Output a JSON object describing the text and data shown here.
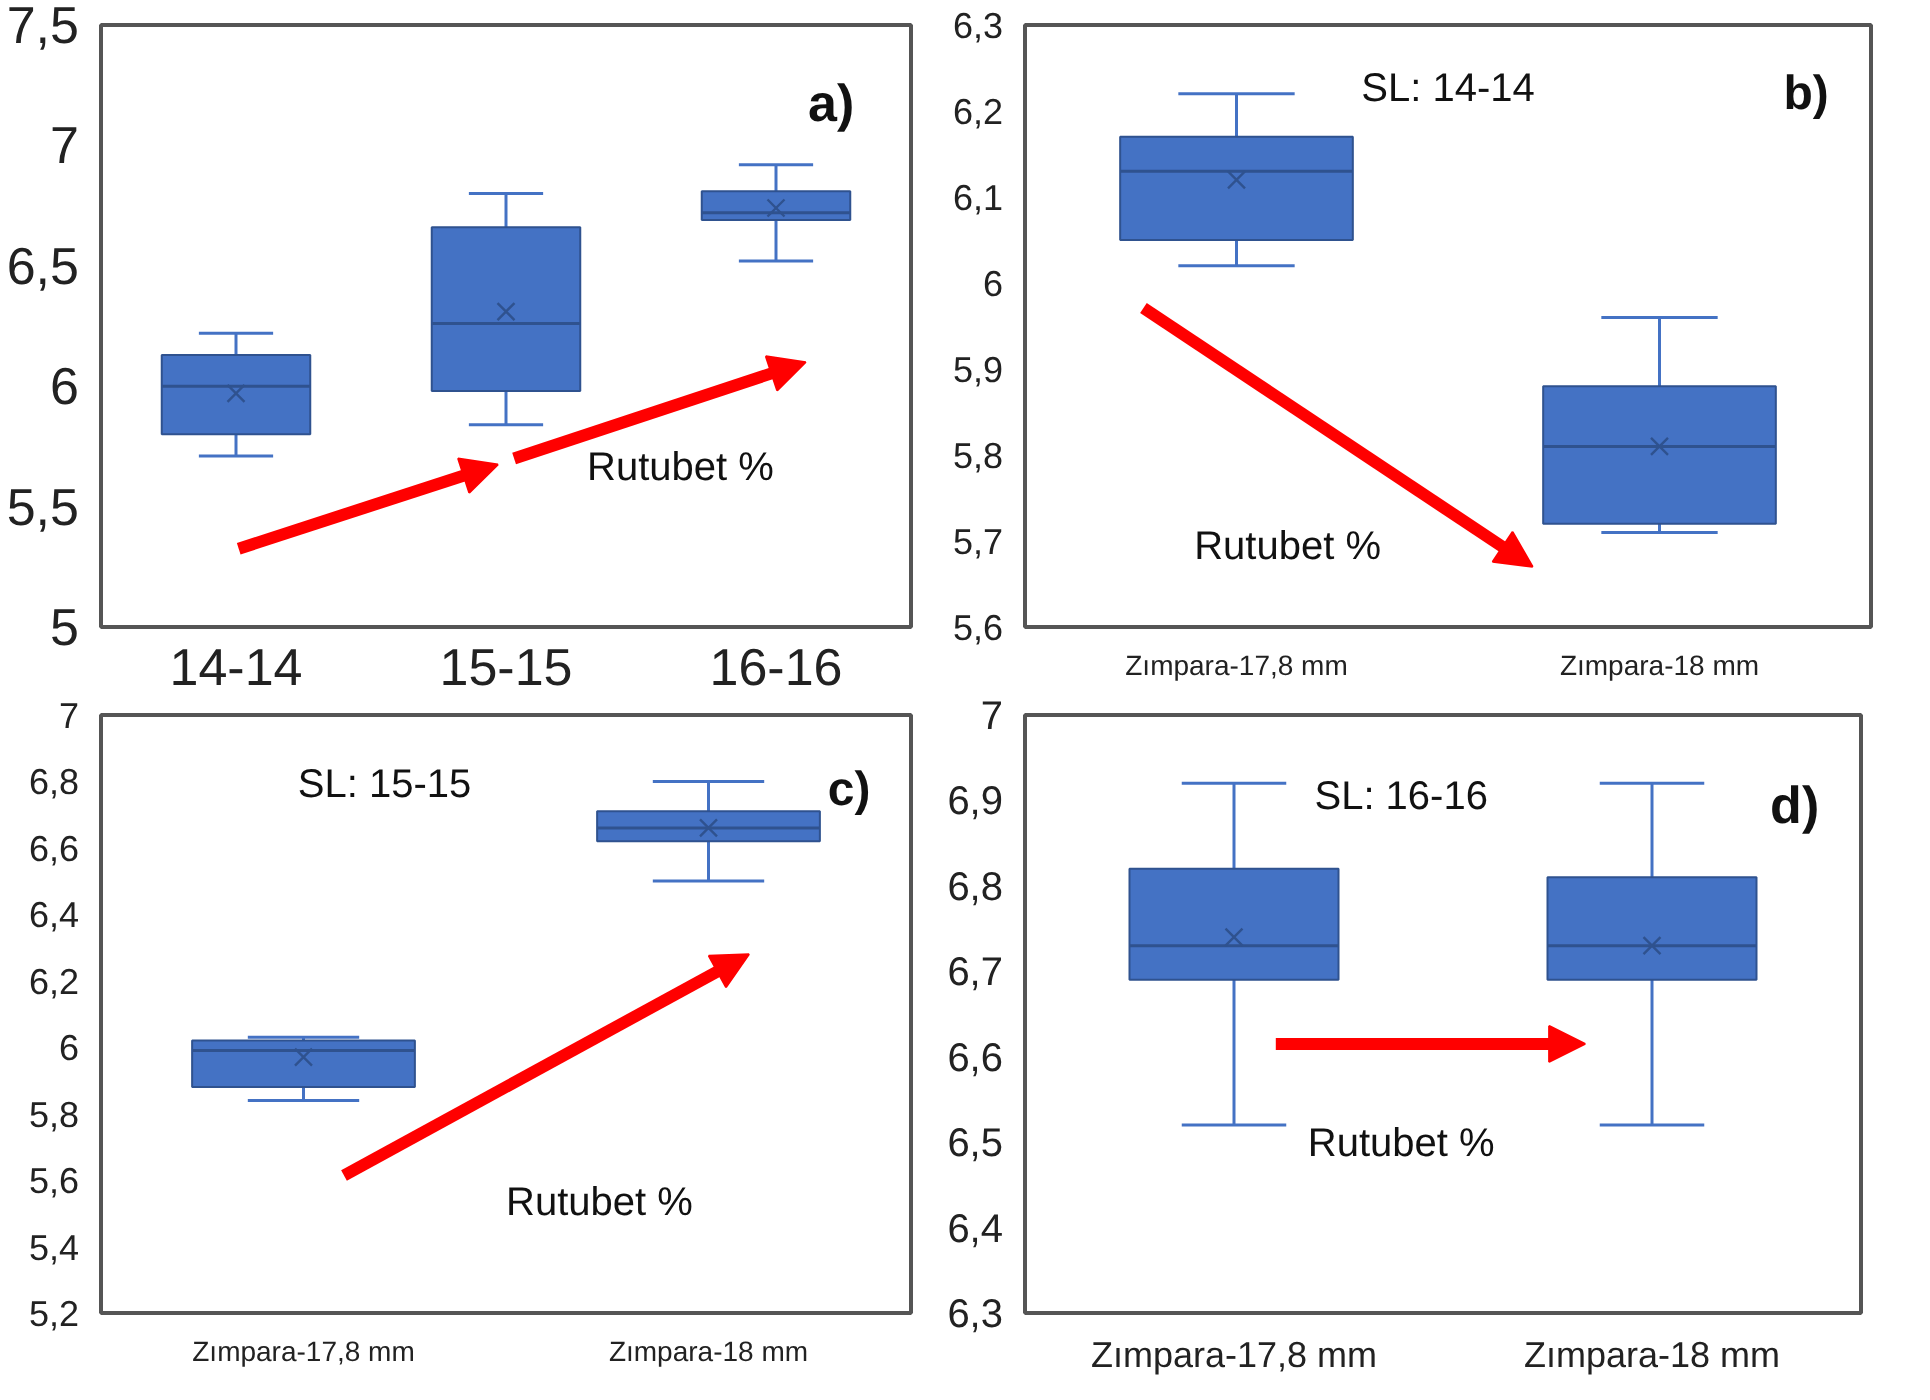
{
  "chart_data": [
    {
      "type": "box",
      "categories": [
        "14-14",
        "15-15",
        "16-16"
      ],
      "color": "#4472c4",
      "boxes": [
        {
          "low": 5.71,
          "q1": 5.8,
          "median": 6.0,
          "q3": 6.13,
          "high": 6.22,
          "mean": 5.97
        },
        {
          "low": 5.84,
          "q1": 5.98,
          "median": 6.26,
          "q3": 6.66,
          "high": 6.8,
          "mean": 6.31
        },
        {
          "low": 6.52,
          "q1": 6.69,
          "median": 6.72,
          "q3": 6.81,
          "high": 6.92,
          "mean": 6.74
        }
      ],
      "ylim": [
        5,
        7.5
      ],
      "yticks": [
        5,
        {
          "value": 5.5,
          "label": "5,5"
        },
        6,
        {
          "value": 6.5,
          "label": "6,5"
        },
        7,
        {
          "value": 7.5,
          "label": "7,5"
        }
      ],
      "annotations": [
        "a)",
        "Rutubet %"
      ],
      "grid": false
    },
    {
      "type": "box",
      "categories": [
        "Zımpara-17,8 mm",
        "Zımpara-18 mm"
      ],
      "color": "#4472c4",
      "boxes": [
        {
          "low": 6.02,
          "q1": 6.05,
          "median": 6.13,
          "q3": 6.17,
          "high": 6.22,
          "mean": 6.12
        },
        {
          "low": 5.71,
          "q1": 5.72,
          "median": 5.81,
          "q3": 5.88,
          "high": 5.96,
          "mean": 5.81
        }
      ],
      "ylim": [
        5.6,
        6.3
      ],
      "yticks": [
        {
          "value": 5.6,
          "label": "5,6"
        },
        {
          "value": 5.7,
          "label": "5,7"
        },
        {
          "value": 5.8,
          "label": "5,8"
        },
        {
          "value": 5.9,
          "label": "5,9"
        },
        6,
        {
          "value": 6.1,
          "label": "6,1"
        },
        {
          "value": 6.2,
          "label": "6,2"
        },
        {
          "value": 6.3,
          "label": "6,3"
        }
      ],
      "annotations": [
        "b)",
        "Rutubet %",
        "SL: 14-14"
      ],
      "grid": false
    },
    {
      "type": "box",
      "categories": [
        "Zımpara-17,8 mm",
        "Zımpara-18 mm"
      ],
      "color": "#4472c4",
      "boxes": [
        {
          "low": 5.84,
          "q1": 5.88,
          "median": 5.99,
          "q3": 6.02,
          "high": 6.03,
          "mean": 5.97
        },
        {
          "low": 6.5,
          "q1": 6.62,
          "median": 6.66,
          "q3": 6.71,
          "high": 6.8,
          "mean": 6.66
        }
      ],
      "ylim": [
        5.2,
        7
      ],
      "yticks": [
        {
          "value": 5.2,
          "label": "5,2"
        },
        {
          "value": 5.4,
          "label": "5,4"
        },
        {
          "value": 5.6,
          "label": "5,6"
        },
        {
          "value": 5.8,
          "label": "5,8"
        },
        6,
        {
          "value": 6.2,
          "label": "6,2"
        },
        {
          "value": 6.4,
          "label": "6,4"
        },
        {
          "value": 6.6,
          "label": "6,6"
        },
        {
          "value": 6.8,
          "label": "6,8"
        },
        7
      ],
      "annotations": [
        "c)",
        "Rutubet %",
        "SL: 15-15"
      ],
      "grid": false
    },
    {
      "type": "box",
      "categories": [
        "Zımpara-17,8 mm",
        "Zımpara-18 mm"
      ],
      "color": "#4472c4",
      "boxes": [
        {
          "low": 6.52,
          "q1": 6.69,
          "median": 6.73,
          "q3": 6.82,
          "high": 6.92,
          "mean": 6.74
        },
        {
          "low": 6.52,
          "q1": 6.69,
          "median": 6.73,
          "q3": 6.81,
          "high": 6.92,
          "mean": 6.73
        }
      ],
      "ylim": [
        6.3,
        7
      ],
      "yticks": [
        {
          "value": 6.3,
          "label": "6,3"
        },
        {
          "value": 6.4,
          "label": "6,4"
        },
        {
          "value": 6.5,
          "label": "6,5"
        },
        {
          "value": 6.6,
          "label": "6,6"
        },
        {
          "value": 6.7,
          "label": "6,7"
        },
        {
          "value": 6.8,
          "label": "6,8"
        },
        {
          "value": 6.9,
          "label": "6,9"
        },
        7
      ],
      "annotations": [
        "d)",
        "Rutubet %",
        "SL: 16-16"
      ],
      "grid": false
    }
  ]
}
